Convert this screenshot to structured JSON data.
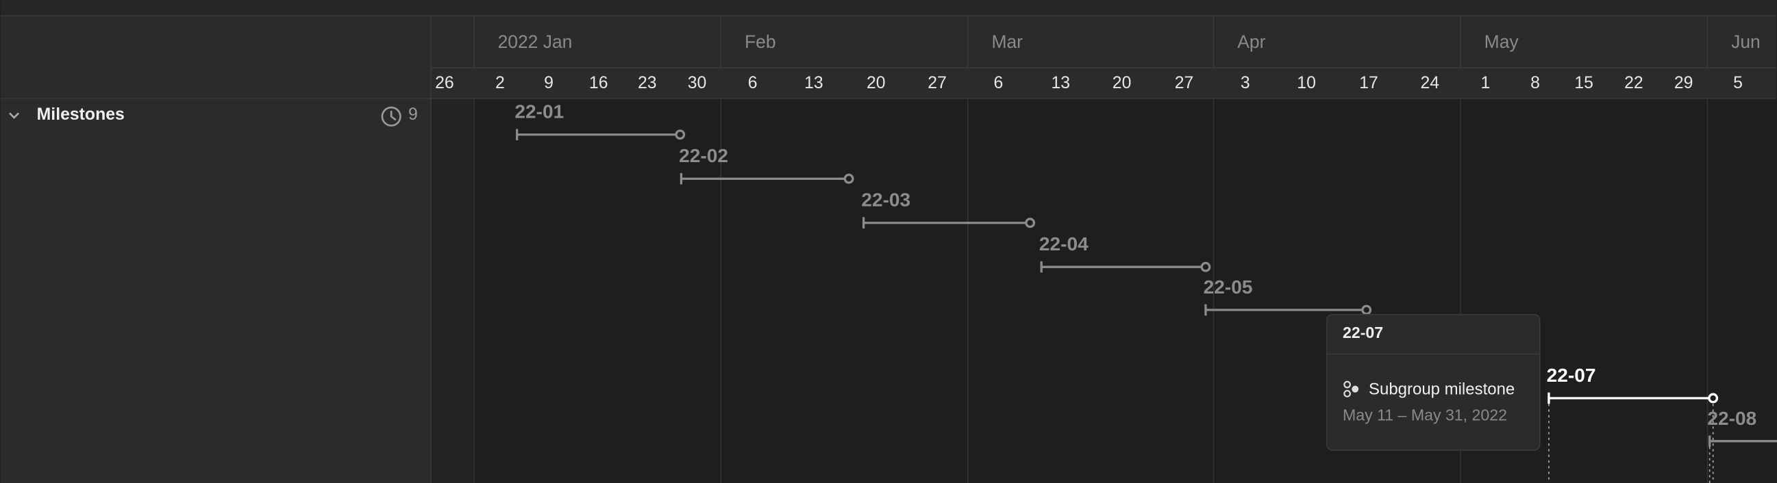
{
  "header": {
    "months": [
      "2022 Jan",
      "Feb",
      "Mar",
      "Apr",
      "May",
      "Jun"
    ],
    "days": [
      "26",
      "2",
      "9",
      "16",
      "23",
      "30",
      "6",
      "13",
      "20",
      "27",
      "6",
      "13",
      "20",
      "27",
      "3",
      "10",
      "17",
      "24",
      "1",
      "8",
      "15",
      "22",
      "29",
      "5"
    ]
  },
  "sidebar": {
    "group": "Milestones",
    "count": 9
  },
  "milestones": [
    {
      "label": "22-01"
    },
    {
      "label": "22-02"
    },
    {
      "label": "22-03"
    },
    {
      "label": "22-04"
    },
    {
      "label": "22-05"
    },
    {
      "label": "22-07"
    },
    {
      "label": "22-08"
    }
  ],
  "tooltip": {
    "title": "22-07",
    "type": "Subgroup milestone",
    "dates": "May 11 – May 31, 2022"
  }
}
